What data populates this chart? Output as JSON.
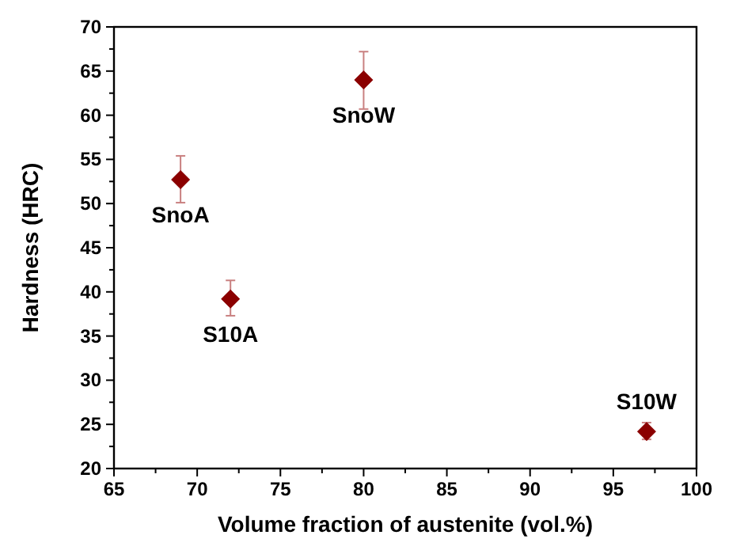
{
  "chart_data": {
    "type": "scatter",
    "xlabel": "Volume fraction of austenite (vol.%)",
    "ylabel": "Hardness (HRC)",
    "x": [
      69,
      72,
      80,
      97
    ],
    "series": [
      {
        "color": "#8b0000",
        "values": [
          52.7,
          39.2,
          64.0,
          24.2
        ],
        "errors": [
          [
            50.1,
            55.4
          ],
          [
            37.3,
            41.3
          ],
          [
            60.7,
            67.2
          ],
          [
            23.3,
            25.2
          ]
        ]
      }
    ],
    "marker": "diamond",
    "grid": false,
    "xlim": [
      65,
      100
    ],
    "xticks": [
      65,
      70,
      75,
      80,
      85,
      90,
      95,
      100
    ],
    "ylim": [
      20,
      70
    ],
    "yticks": [
      20,
      25,
      30,
      35,
      40,
      45,
      50,
      55,
      60,
      65,
      70
    ],
    "annotations": [
      {
        "text": "SnoA",
        "x": 69,
        "y": 52.7
      },
      {
        "text": "S10A",
        "x": 72,
        "y": 39.2
      },
      {
        "text": "SnoW",
        "x": 80,
        "y": 64.0
      },
      {
        "text": "S10W",
        "x": 97,
        "y": 24.2
      }
    ]
  }
}
